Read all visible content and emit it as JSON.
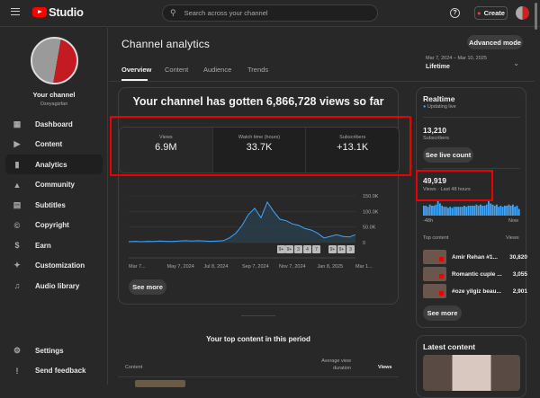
{
  "app": {
    "logo_text": "Studio",
    "search_placeholder": "Search across your channel",
    "create_label": "Create",
    "help_icon": "question-icon"
  },
  "sidebar": {
    "channel_label": "Your channel",
    "channel_handle": "Ozeyagizfan",
    "items": [
      {
        "label": "Dashboard",
        "icon": "dashboard-icon"
      },
      {
        "label": "Content",
        "icon": "content-icon"
      },
      {
        "label": "Analytics",
        "icon": "analytics-icon",
        "active": true
      },
      {
        "label": "Community",
        "icon": "community-icon"
      },
      {
        "label": "Subtitles",
        "icon": "subtitles-icon"
      },
      {
        "label": "Copyright",
        "icon": "copyright-icon"
      },
      {
        "label": "Earn",
        "icon": "dollar-icon"
      },
      {
        "label": "Customization",
        "icon": "magic-wand-icon"
      },
      {
        "label": "Audio library",
        "icon": "audio-library-icon"
      }
    ],
    "bottom": [
      {
        "label": "Settings",
        "icon": "gear-icon"
      },
      {
        "label": "Send feedback",
        "icon": "feedback-icon"
      }
    ]
  },
  "header": {
    "title": "Channel analytics",
    "advanced_mode": "Advanced mode",
    "tabs": [
      "Overview",
      "Content",
      "Audience",
      "Trends"
    ],
    "active_tab": "Overview",
    "date_range": "Mar 7, 2024 – Mar 10, 2025",
    "period": "Lifetime"
  },
  "overview": {
    "headline": "Your channel has gotten 6,866,728 views so far",
    "metrics": [
      {
        "label": "Views",
        "value": "6.9M"
      },
      {
        "label": "Watch time (hours)",
        "value": "33.7K"
      },
      {
        "label": "Subscribers",
        "value": "+13.1K"
      }
    ],
    "markers": [
      "9+",
      "9+",
      "3",
      "4",
      "7",
      "9+",
      "9+",
      "3"
    ],
    "see_more": "See more"
  },
  "chart_data": {
    "type": "line",
    "series_color": "#3ea6ff",
    "x": [
      "Mar 7, 2024",
      "Mar 21",
      "Apr 4",
      "Apr 18",
      "May 2",
      "May 16",
      "May 30",
      "Jun 13",
      "Jun 27",
      "Jul 11",
      "Jul 25",
      "Aug 8",
      "Aug 22",
      "Sep 5",
      "Sep 19",
      "Oct 3",
      "Oct 17",
      "Oct 24",
      "Oct 31",
      "Nov 7",
      "Nov 14",
      "Nov 21",
      "Nov 28",
      "Dec 5",
      "Dec 12",
      "Dec 19",
      "Dec 26",
      "Jan 2",
      "Jan 9",
      "Jan 16",
      "Jan 23",
      "Jan 30",
      "Feb 6",
      "Feb 13",
      "Feb 20",
      "Feb 27",
      "Mar 10, 2025"
    ],
    "values": [
      3000,
      4000,
      3000,
      4000,
      3500,
      5000,
      4000,
      3500,
      5000,
      6000,
      5000,
      6000,
      5000,
      4000,
      5000,
      6000,
      15000,
      30000,
      55000,
      90000,
      110000,
      80000,
      130000,
      100000,
      75000,
      70000,
      60000,
      55000,
      45000,
      40000,
      30000,
      15000,
      20000,
      25000,
      20000,
      18000,
      25000
    ],
    "x_ticks": [
      "Mar 7...",
      "May 7, 2024",
      "Jul 8, 2024",
      "Sep 7, 2024",
      "Nov 7, 2024",
      "Jan 8, 2025",
      "Mar 1..."
    ],
    "y_ticks": [
      "150.0K",
      "100.0K",
      "50.0K",
      "0"
    ],
    "ylim": [
      0,
      150000
    ],
    "grid": true
  },
  "realtime": {
    "title": "Realtime",
    "status": "Updating live",
    "subscribers_value": "13,210",
    "subscribers_label": "Subscribers",
    "live_count_button": "See live count",
    "views_value": "49,919",
    "views_label": "Views · Last 48 hours",
    "axis_start": "-48h",
    "axis_end": "Now",
    "bars": [
      9,
      9,
      8,
      10,
      9,
      9,
      10,
      13,
      11,
      9,
      8,
      8,
      7,
      8,
      7,
      8,
      8,
      8,
      8,
      8,
      9,
      8,
      9,
      9,
      9,
      9,
      10,
      9,
      10,
      9,
      9,
      10,
      13,
      11,
      10,
      9,
      10,
      8,
      9,
      8,
      9,
      9,
      10,
      9,
      10,
      8,
      9,
      6
    ],
    "top_content_label": "Top content",
    "views_col": "Views",
    "top_content": [
      {
        "title": "Amir Rehan #1...",
        "views": "30,820"
      },
      {
        "title": "Romantic cuple ...",
        "views": "3,055"
      },
      {
        "title": "#oze yilgiz beau...",
        "views": "2,901"
      }
    ],
    "see_more": "See more"
  },
  "top_content": {
    "title": "Your top content in this period",
    "col_content": "Content",
    "col_avg": "Average view duration",
    "col_views": "Views"
  },
  "latest": {
    "title": "Latest content"
  }
}
